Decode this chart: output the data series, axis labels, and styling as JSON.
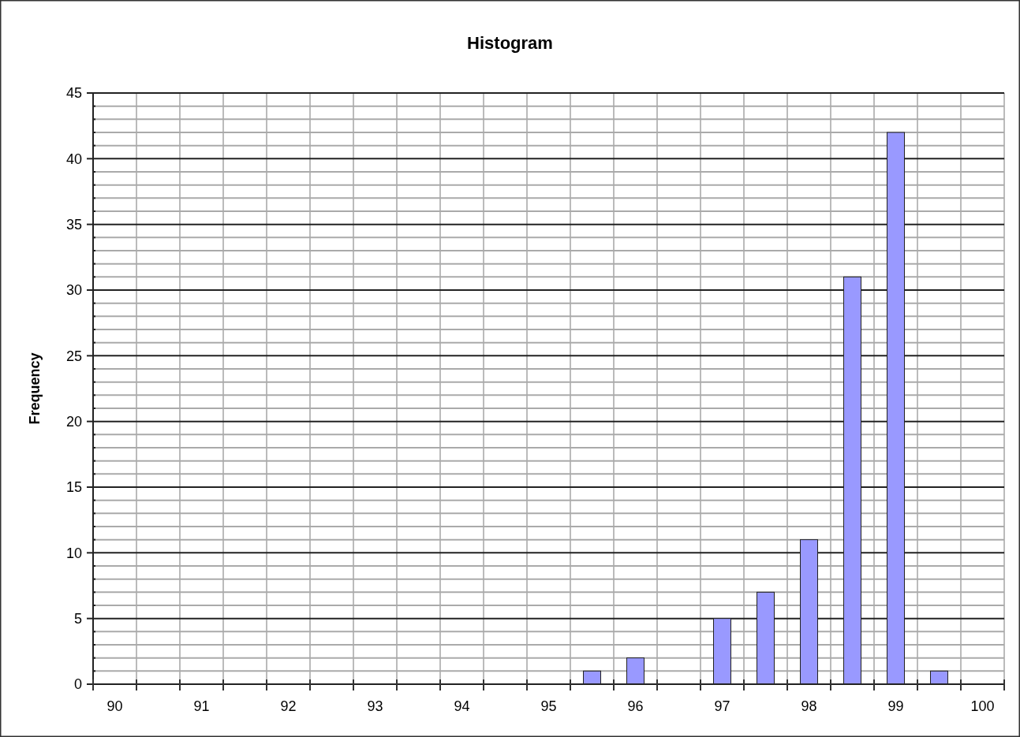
{
  "chart_data": {
    "type": "bar",
    "title": "Histogram",
    "ylabel": "Frequency",
    "categories": [
      "90",
      null,
      "91",
      null,
      "92",
      null,
      "93",
      null,
      "94",
      null,
      "95",
      null,
      "96",
      null,
      "97",
      null,
      "98",
      null,
      "99",
      null,
      "100"
    ],
    "values": [
      0,
      0,
      0,
      0,
      0,
      0,
      0,
      0,
      0,
      0,
      0,
      1,
      2,
      0,
      5,
      7,
      11,
      31,
      42,
      1,
      0
    ],
    "color": "#9999ff",
    "ylim": [
      0,
      45
    ],
    "yticks": [
      0,
      {
        "value": 1,
        "label": null
      },
      {
        "value": 2,
        "label": null
      },
      {
        "value": 3,
        "label": null
      },
      {
        "value": 4,
        "label": null
      },
      5,
      {
        "value": 6,
        "label": null
      },
      {
        "value": 7,
        "label": null
      },
      {
        "value": 8,
        "label": null
      },
      {
        "value": 9,
        "label": null
      },
      10,
      {
        "value": 11,
        "label": null
      },
      {
        "value": 12,
        "label": null
      },
      {
        "value": 13,
        "label": null
      },
      {
        "value": 14,
        "label": null
      },
      15,
      {
        "value": 16,
        "label": null
      },
      {
        "value": 17,
        "label": null
      },
      {
        "value": 18,
        "label": null
      },
      {
        "value": 19,
        "label": null
      },
      20,
      {
        "value": 21,
        "label": null
      },
      {
        "value": 22,
        "label": null
      },
      {
        "value": 23,
        "label": null
      },
      {
        "value": 24,
        "label": null
      },
      25,
      {
        "value": 26,
        "label": null
      },
      {
        "value": 27,
        "label": null
      },
      {
        "value": 28,
        "label": null
      },
      {
        "value": 29,
        "label": null
      },
      30,
      {
        "value": 31,
        "label": null
      },
      {
        "value": 32,
        "label": null
      },
      {
        "value": 33,
        "label": null
      },
      {
        "value": 34,
        "label": null
      },
      35,
      {
        "value": 36,
        "label": null
      },
      {
        "value": 37,
        "label": null
      },
      {
        "value": 38,
        "label": null
      },
      {
        "value": 39,
        "label": null
      },
      40,
      {
        "value": 41,
        "label": null
      },
      {
        "value": 42,
        "label": null
      },
      {
        "value": 43,
        "label": null
      },
      {
        "value": 44,
        "label": null
      },
      45
    ],
    "grid": true
  }
}
